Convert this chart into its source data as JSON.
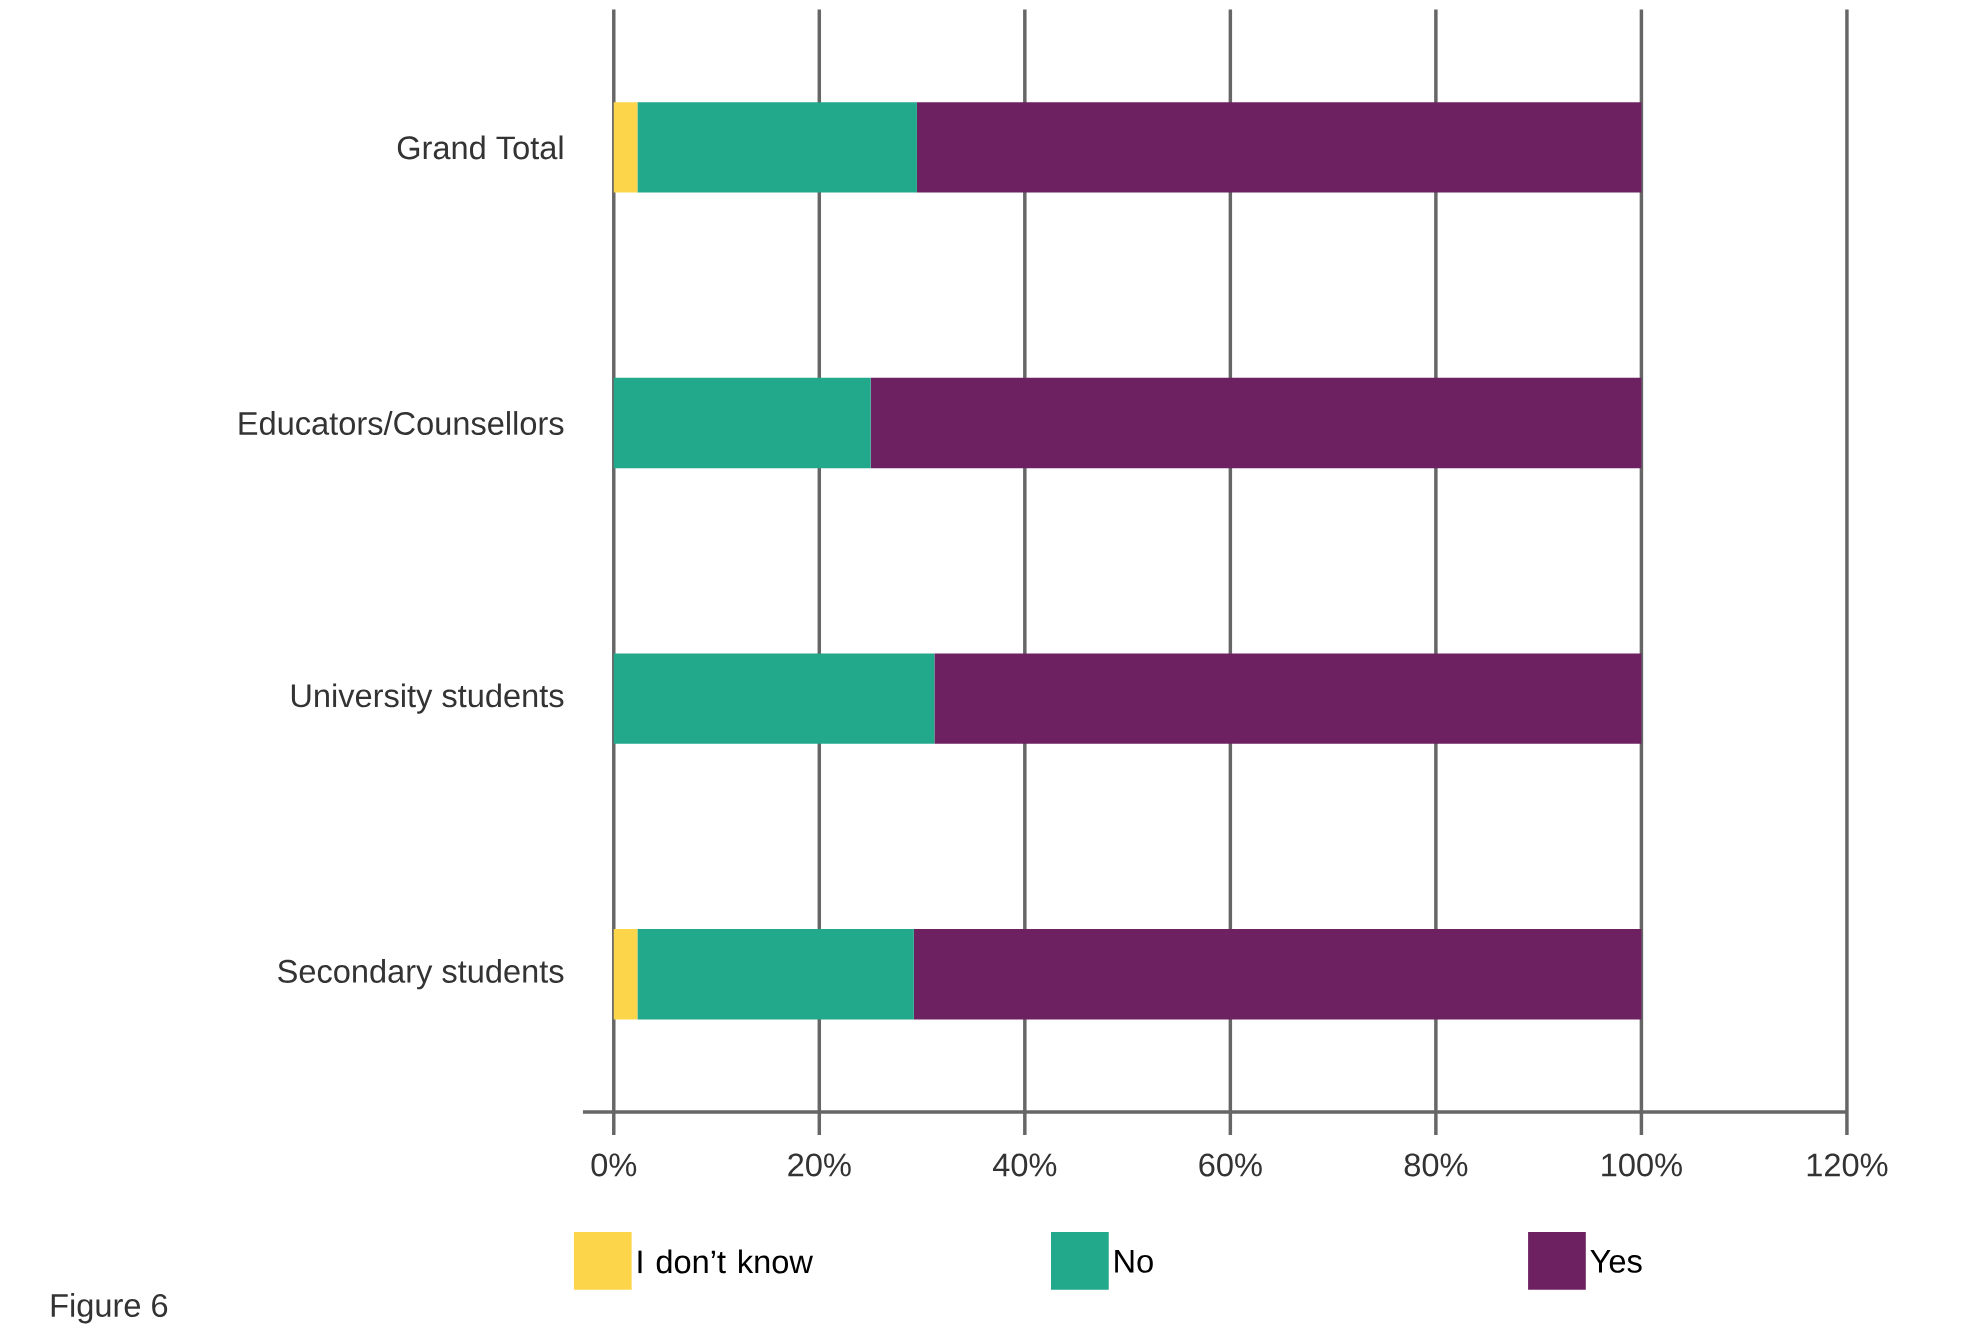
{
  "chart_data": {
    "type": "bar",
    "orientation": "horizontal",
    "stacked": true,
    "categories": [
      "Grand Total",
      "Educators/Counsellors",
      "University students",
      "Secondary students"
    ],
    "series": [
      {
        "name": "I don’t know",
        "color": "#fdd54a",
        "values": [
          2.3,
          0,
          0,
          2.3
        ]
      },
      {
        "name": "No",
        "color": "#22a88a",
        "values": [
          27.2,
          25,
          31.2,
          26.9
        ]
      },
      {
        "name": "Yes",
        "color": "#6d2160",
        "values": [
          70.5,
          75,
          68.8,
          70.8
        ]
      }
    ],
    "xlim": [
      -3,
      120
    ],
    "xticks": [
      {
        "value": 0,
        "label": "0%"
      },
      {
        "value": 20,
        "label": "20%"
      },
      {
        "value": 40,
        "label": "40%"
      },
      {
        "value": 60,
        "label": "60%"
      },
      {
        "value": 80,
        "label": "80%"
      },
      {
        "value": 100,
        "label": "100%"
      },
      {
        "value": 120,
        "label": "120%"
      }
    ],
    "grid": "x",
    "legend": "bottom",
    "annotations": [
      "Figure 6"
    ]
  }
}
